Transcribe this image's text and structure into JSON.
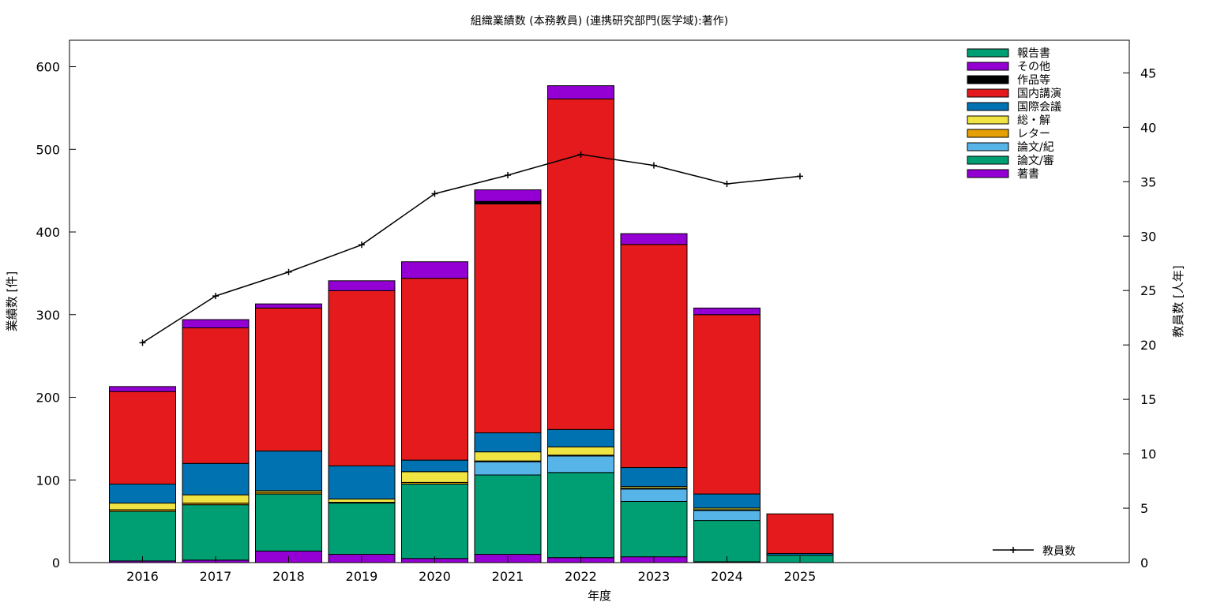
{
  "chart_data": {
    "type": "bar",
    "stacked": true,
    "title": "組織業績数 (本務教員) (連携研究部門(医学域):著作)",
    "xlabel": "年度",
    "ylabel": "業績数 [件]",
    "y2label": "教員数 [人年]",
    "categories": [
      "2016",
      "2017",
      "2018",
      "2019",
      "2020",
      "2021",
      "2022",
      "2023",
      "2024",
      "2025"
    ],
    "ylim": [
      0,
      632
    ],
    "y2lim": [
      0,
      48
    ],
    "yticks": [
      0,
      100,
      200,
      300,
      400,
      500,
      600
    ],
    "y2ticks": [
      0,
      5,
      10,
      15,
      20,
      25,
      30,
      35,
      40,
      45
    ],
    "grid": false,
    "legend_position": "top-right",
    "series": [
      {
        "name": "著書",
        "color": "#9400d3",
        "values": [
          2,
          3,
          14,
          10,
          5,
          10,
          6,
          7,
          1,
          0
        ]
      },
      {
        "name": "論文/審",
        "color": "#009e73",
        "values": [
          60,
          67,
          69,
          62,
          90,
          96,
          103,
          67,
          50,
          9
        ]
      },
      {
        "name": "論文/紀",
        "color": "#56b4e9",
        "values": [
          0,
          0,
          0,
          0,
          0,
          16,
          20,
          15,
          12,
          0
        ]
      },
      {
        "name": "レター",
        "color": "#e69f00",
        "values": [
          2,
          2,
          2,
          1,
          2,
          1,
          1,
          1,
          1,
          0
        ]
      },
      {
        "name": "総・解",
        "color": "#f0e442",
        "values": [
          8,
          10,
          2,
          4,
          13,
          11,
          10,
          2,
          2,
          0
        ]
      },
      {
        "name": "国際会議",
        "color": "#0072b2",
        "values": [
          23,
          38,
          48,
          40,
          14,
          23,
          21,
          23,
          17,
          2
        ]
      },
      {
        "name": "国内講演",
        "color": "#e41a1c",
        "values": [
          112,
          164,
          173,
          212,
          220,
          277,
          400,
          270,
          217,
          48
        ]
      },
      {
        "name": "作品等",
        "color": "#000000",
        "values": [
          0,
          0,
          0,
          0,
          0,
          3,
          0,
          0,
          0,
          0
        ]
      },
      {
        "name": "その他",
        "color": "#9400d3",
        "values": [
          6,
          10,
          5,
          12,
          20,
          14,
          16,
          13,
          8,
          0
        ]
      },
      {
        "name": "報告書",
        "color": "#009e73",
        "values": [
          0,
          0,
          0,
          0,
          0,
          0,
          0,
          0,
          0,
          0
        ]
      }
    ],
    "line": {
      "name": "教員数",
      "color": "#000000",
      "axis": "y2",
      "values": [
        20.2,
        24.5,
        26.7,
        29.2,
        33.9,
        35.6,
        37.5,
        36.5,
        34.8,
        35.5
      ]
    }
  }
}
